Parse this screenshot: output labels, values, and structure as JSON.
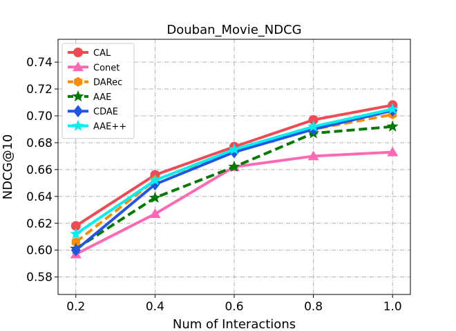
{
  "chart_data": {
    "type": "line",
    "title": "Douban_Movie_NDCG",
    "xlabel": "Num of Interactions",
    "ylabel": "NDCG@10",
    "x": [
      0.2,
      0.4,
      0.6,
      0.8,
      1.0
    ],
    "x_tick_labels": [
      "0.2",
      "0.4",
      "0.6",
      "0.8",
      "1.0"
    ],
    "xlim": [
      0.155,
      1.045
    ],
    "ylim": [
      0.567,
      0.757
    ],
    "y_ticks": [
      0.58,
      0.6,
      0.62,
      0.64,
      0.66,
      0.68,
      0.7,
      0.72,
      0.74
    ],
    "y_tick_labels": [
      "0.58",
      "0.60",
      "0.62",
      "0.64",
      "0.66",
      "0.68",
      "0.70",
      "0.72",
      "0.74"
    ],
    "grid": true,
    "legend_position": "upper-left",
    "series": [
      {
        "name": "CAL",
        "values": [
          0.618,
          0.656,
          0.677,
          0.697,
          0.708
        ],
        "color": "#f04b55",
        "marker": "circle",
        "dash": "solid"
      },
      {
        "name": "Conet",
        "values": [
          0.597,
          0.627,
          0.662,
          0.67,
          0.673
        ],
        "color": "#ff69b4",
        "marker": "triangle",
        "dash": "solid"
      },
      {
        "name": "DARec",
        "values": [
          0.606,
          0.652,
          0.674,
          0.69,
          0.701
        ],
        "color": "#ff8c00",
        "marker": "hexagon",
        "dash": "dashed"
      },
      {
        "name": "AAE",
        "values": [
          0.601,
          0.639,
          0.662,
          0.687,
          0.692
        ],
        "color": "#007a00",
        "marker": "star",
        "dash": "dashed"
      },
      {
        "name": "CDAE",
        "values": [
          0.6,
          0.649,
          0.673,
          0.69,
          0.704
        ],
        "color": "#2255e6",
        "marker": "diamond",
        "dash": "solid"
      },
      {
        "name": "AAE++",
        "values": [
          0.612,
          0.652,
          0.675,
          0.692,
          0.705
        ],
        "color": "#00f0f0",
        "marker": "star",
        "dash": "solid"
      }
    ]
  }
}
